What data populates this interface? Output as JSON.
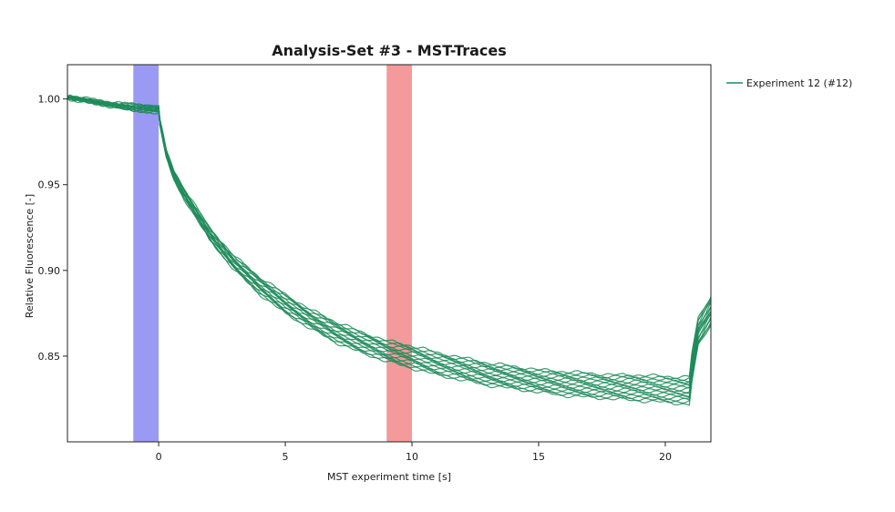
{
  "chart_data": {
    "type": "line",
    "title": "Analysis-Set #3 - MST-Traces",
    "xlabel": "MST experiment time [s]",
    "ylabel": "Relative Fluorescence [-]",
    "xlim": [
      -3.6,
      21.8
    ],
    "ylim": [
      0.8,
      1.02
    ],
    "x_ticks": [
      {
        "value": 0,
        "label": "0"
      },
      {
        "value": 5,
        "label": "5"
      },
      {
        "value": 10,
        "label": "10"
      },
      {
        "value": 15,
        "label": "15"
      },
      {
        "value": 20,
        "label": "20"
      }
    ],
    "y_ticks": [
      {
        "value": 0.85,
        "label": "0.85"
      },
      {
        "value": 0.9,
        "label": "0.90"
      },
      {
        "value": 0.95,
        "label": "0.95"
      },
      {
        "value": 1.0,
        "label": "1.00"
      }
    ],
    "grid": false,
    "legend": {
      "position": "right",
      "entries": [
        {
          "label": "Experiment 12 (#12)",
          "color": "#1f8b5a"
        }
      ]
    },
    "highlight_regions": [
      {
        "name": "cold region",
        "x_start": -1.0,
        "x_end": 0.0,
        "color": "#9a9af5"
      },
      {
        "name": "hot region",
        "x_start": 9.0,
        "x_end": 10.0,
        "color": "#f49a9a"
      }
    ],
    "series": [
      {
        "color": "#1f8b5a",
        "trace_count": 16,
        "x": [
          -3.6,
          -2,
          -1,
          0,
          0.05,
          0.3,
          0.6,
          1,
          2,
          3,
          4,
          5,
          6,
          7,
          8,
          9,
          10,
          11,
          12,
          13,
          14,
          15,
          16,
          17,
          18,
          19,
          20,
          20.95,
          21.05,
          21.3,
          21.8
        ],
        "y_upper": [
          1.002,
          0.998,
          0.997,
          0.996,
          0.988,
          0.97,
          0.958,
          0.948,
          0.925,
          0.908,
          0.896,
          0.886,
          0.877,
          0.87,
          0.864,
          0.859,
          0.856,
          0.852,
          0.849,
          0.846,
          0.844,
          0.842,
          0.841,
          0.84,
          0.839,
          0.839,
          0.838,
          0.838,
          0.852,
          0.872,
          0.885
        ],
        "y_lower": [
          1.0,
          0.996,
          0.993,
          0.992,
          0.984,
          0.966,
          0.953,
          0.942,
          0.918,
          0.9,
          0.886,
          0.875,
          0.866,
          0.858,
          0.852,
          0.847,
          0.843,
          0.839,
          0.836,
          0.833,
          0.831,
          0.829,
          0.827,
          0.826,
          0.825,
          0.824,
          0.823,
          0.822,
          0.835,
          0.856,
          0.868
        ]
      }
    ]
  }
}
